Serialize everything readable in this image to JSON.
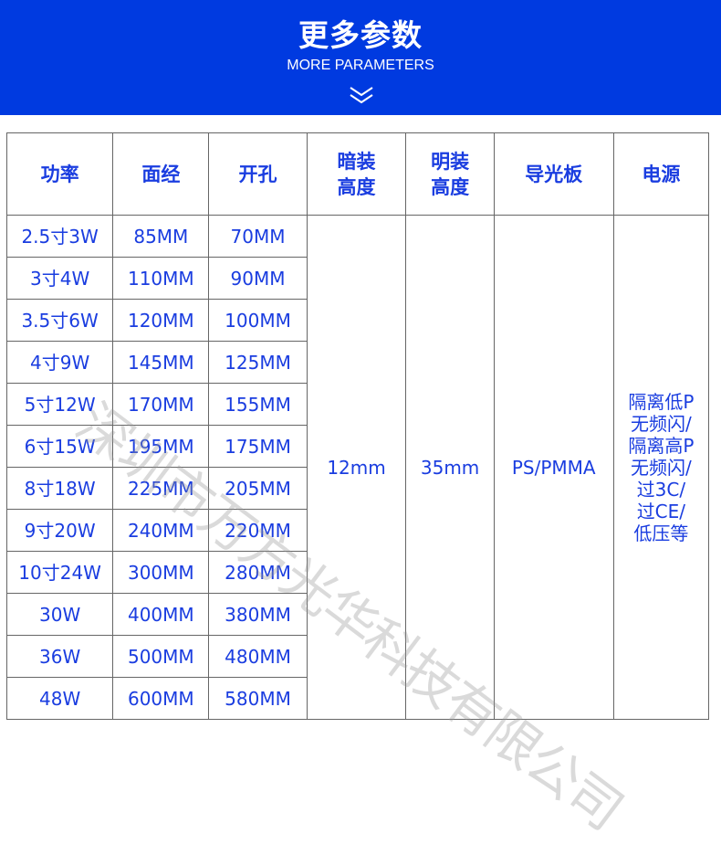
{
  "banner": {
    "title": "更多参数",
    "subtitle": "MORE PARAMETERS",
    "icon": "double-chevron-down-icon",
    "color": "#003ae0"
  },
  "table": {
    "headers": [
      "功率",
      "面经",
      "开孔",
      "暗装\n高度",
      "明装\n高度",
      "导光板",
      "电源"
    ],
    "rows": [
      [
        "2.5寸3W",
        "85MM",
        "70MM"
      ],
      [
        "3寸4W",
        "110MM",
        "90MM"
      ],
      [
        "3.5寸6W",
        "120MM",
        "100MM"
      ],
      [
        "4寸9W",
        "145MM",
        "125MM"
      ],
      [
        "5寸12W",
        "170MM",
        "155MM"
      ],
      [
        "6寸15W",
        "195MM",
        "175MM"
      ],
      [
        "8寸18W",
        "225MM",
        "205MM"
      ],
      [
        "9寸20W",
        "240MM",
        "220MM"
      ],
      [
        "10寸24W",
        "300MM",
        "280MM"
      ],
      [
        "30W",
        "400MM",
        "380MM"
      ],
      [
        "36W",
        "500MM",
        "480MM"
      ],
      [
        "48W",
        "600MM",
        "580MM"
      ]
    ],
    "recessed_height": "12mm",
    "surface_height": "35mm",
    "light_guide": "PS/PMMA",
    "power_supply": "隔离低P\n无频闪/\n隔离高P\n无频闪/\n过3C/\n过CE/\n低压等",
    "text_color": "#1a3de0"
  },
  "watermark": "深圳市万方光华科技有限公司"
}
